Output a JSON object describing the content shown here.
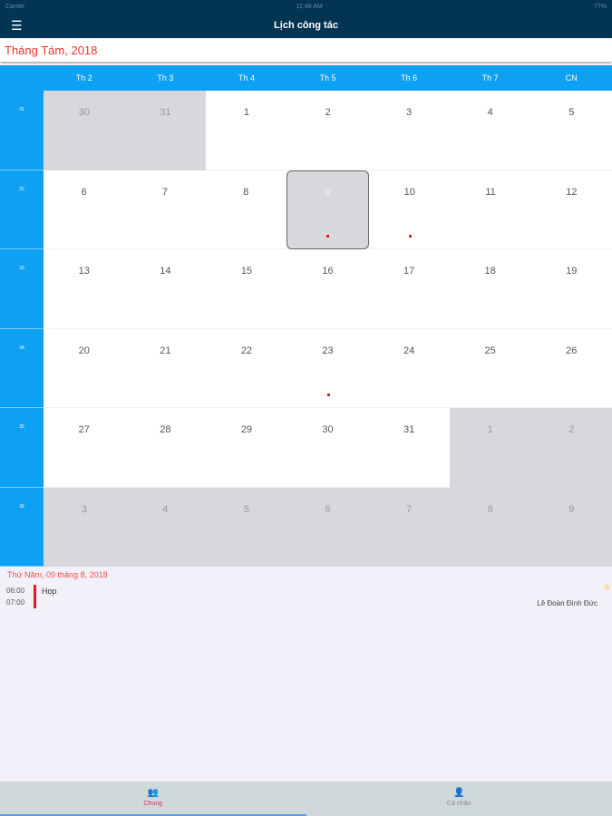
{
  "status": {
    "carrier": "Carrier",
    "time": "11:48 AM",
    "battery": "77%"
  },
  "nav": {
    "title": "Lịch công tác",
    "menu_icon": "hamburger-icon"
  },
  "month": "Tháng Tám, 2018",
  "weekdays": [
    "Th 2",
    "Th 3",
    "Th 4",
    "Th 5",
    "Th 6",
    "Th 7",
    "CN"
  ],
  "weeks": [
    {
      "num": "31",
      "days": [
        {
          "d": "30",
          "out": true
        },
        {
          "d": "31",
          "out": true
        },
        {
          "d": "1"
        },
        {
          "d": "2"
        },
        {
          "d": "3"
        },
        {
          "d": "4"
        },
        {
          "d": "5"
        }
      ]
    },
    {
      "num": "32",
      "days": [
        {
          "d": "6"
        },
        {
          "d": "7"
        },
        {
          "d": "8"
        },
        {
          "d": "9",
          "sel": true,
          "dot": true
        },
        {
          "d": "10",
          "dot": true
        },
        {
          "d": "11"
        },
        {
          "d": "12"
        }
      ]
    },
    {
      "num": "33",
      "days": [
        {
          "d": "13"
        },
        {
          "d": "14"
        },
        {
          "d": "15"
        },
        {
          "d": "16"
        },
        {
          "d": "17"
        },
        {
          "d": "18"
        },
        {
          "d": "19"
        }
      ]
    },
    {
      "num": "34",
      "days": [
        {
          "d": "20"
        },
        {
          "d": "21"
        },
        {
          "d": "22"
        },
        {
          "d": "23",
          "dot": true
        },
        {
          "d": "24"
        },
        {
          "d": "25"
        },
        {
          "d": "26"
        }
      ]
    },
    {
      "num": "35",
      "days": [
        {
          "d": "27"
        },
        {
          "d": "28"
        },
        {
          "d": "29"
        },
        {
          "d": "30"
        },
        {
          "d": "31"
        },
        {
          "d": "1",
          "out": true
        },
        {
          "d": "2",
          "out": true
        }
      ]
    },
    {
      "num": "36",
      "days": [
        {
          "d": "3",
          "out": true
        },
        {
          "d": "4",
          "out": true
        },
        {
          "d": "5",
          "out": true
        },
        {
          "d": "6",
          "out": true
        },
        {
          "d": "7",
          "out": true
        },
        {
          "d": "8",
          "out": true
        },
        {
          "d": "9",
          "out": true
        }
      ]
    }
  ],
  "detail": {
    "date": "Thứ Năm, 09 tháng 8, 2018",
    "events": [
      {
        "start": "06:00",
        "end": "07:00",
        "title": "Họp",
        "person": "Lê Đoàn Đình Đức"
      }
    ]
  },
  "tabs": [
    {
      "label": "Chung",
      "icon": "group-icon",
      "active": true
    },
    {
      "label": "Cá nhân",
      "icon": "person-icon",
      "active": false
    }
  ],
  "colors": {
    "navbar": "#023453",
    "accent": "#0ea0f2",
    "highlight": "#f0302a"
  }
}
